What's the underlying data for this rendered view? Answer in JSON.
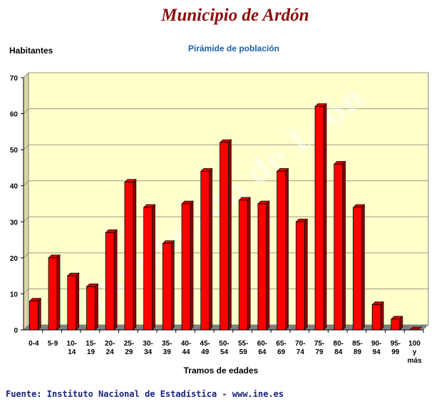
{
  "colors": {
    "plot_bg": "#ffffcc",
    "bar": "#ff0000",
    "title": "#8b0d0d",
    "subtitle": "#1f5fa8",
    "source": "#1a237e"
  },
  "chart_data": {
    "type": "bar",
    "title": "Municipio de Ardón",
    "subtitle": "Pirámide de población",
    "ylabel": "Habitantes",
    "xlabel": "Tramos de edades",
    "ylim": [
      0,
      70
    ],
    "yticks": [
      0,
      10,
      20,
      30,
      40,
      50,
      60,
      70
    ],
    "grid": true,
    "categories": [
      [
        "0-4"
      ],
      [
        "5-9"
      ],
      [
        "10-",
        "14"
      ],
      [
        "15-",
        "19"
      ],
      [
        "20-",
        "24"
      ],
      [
        "25-",
        "29"
      ],
      [
        "30-",
        "34"
      ],
      [
        "35-",
        "39"
      ],
      [
        "40-",
        "44"
      ],
      [
        "45-",
        "49"
      ],
      [
        "50-",
        "54"
      ],
      [
        "55-",
        "59"
      ],
      [
        "60-",
        "64"
      ],
      [
        "65-",
        "69"
      ],
      [
        "70-",
        "74"
      ],
      [
        "75-",
        "79"
      ],
      [
        "80-",
        "84"
      ],
      [
        "85-",
        "89"
      ],
      [
        "90-",
        "94"
      ],
      [
        "95-",
        "99"
      ],
      [
        "100",
        "y",
        "más"
      ]
    ],
    "values": [
      8,
      20,
      15,
      12,
      27,
      41,
      34,
      24,
      35,
      44,
      52,
      36,
      35,
      44,
      30,
      62,
      46,
      34,
      7,
      3,
      0
    ]
  },
  "watermark": "Diputación de León",
  "source": "Fuente: Instituto Nacional de Estadística - www.ine.es"
}
